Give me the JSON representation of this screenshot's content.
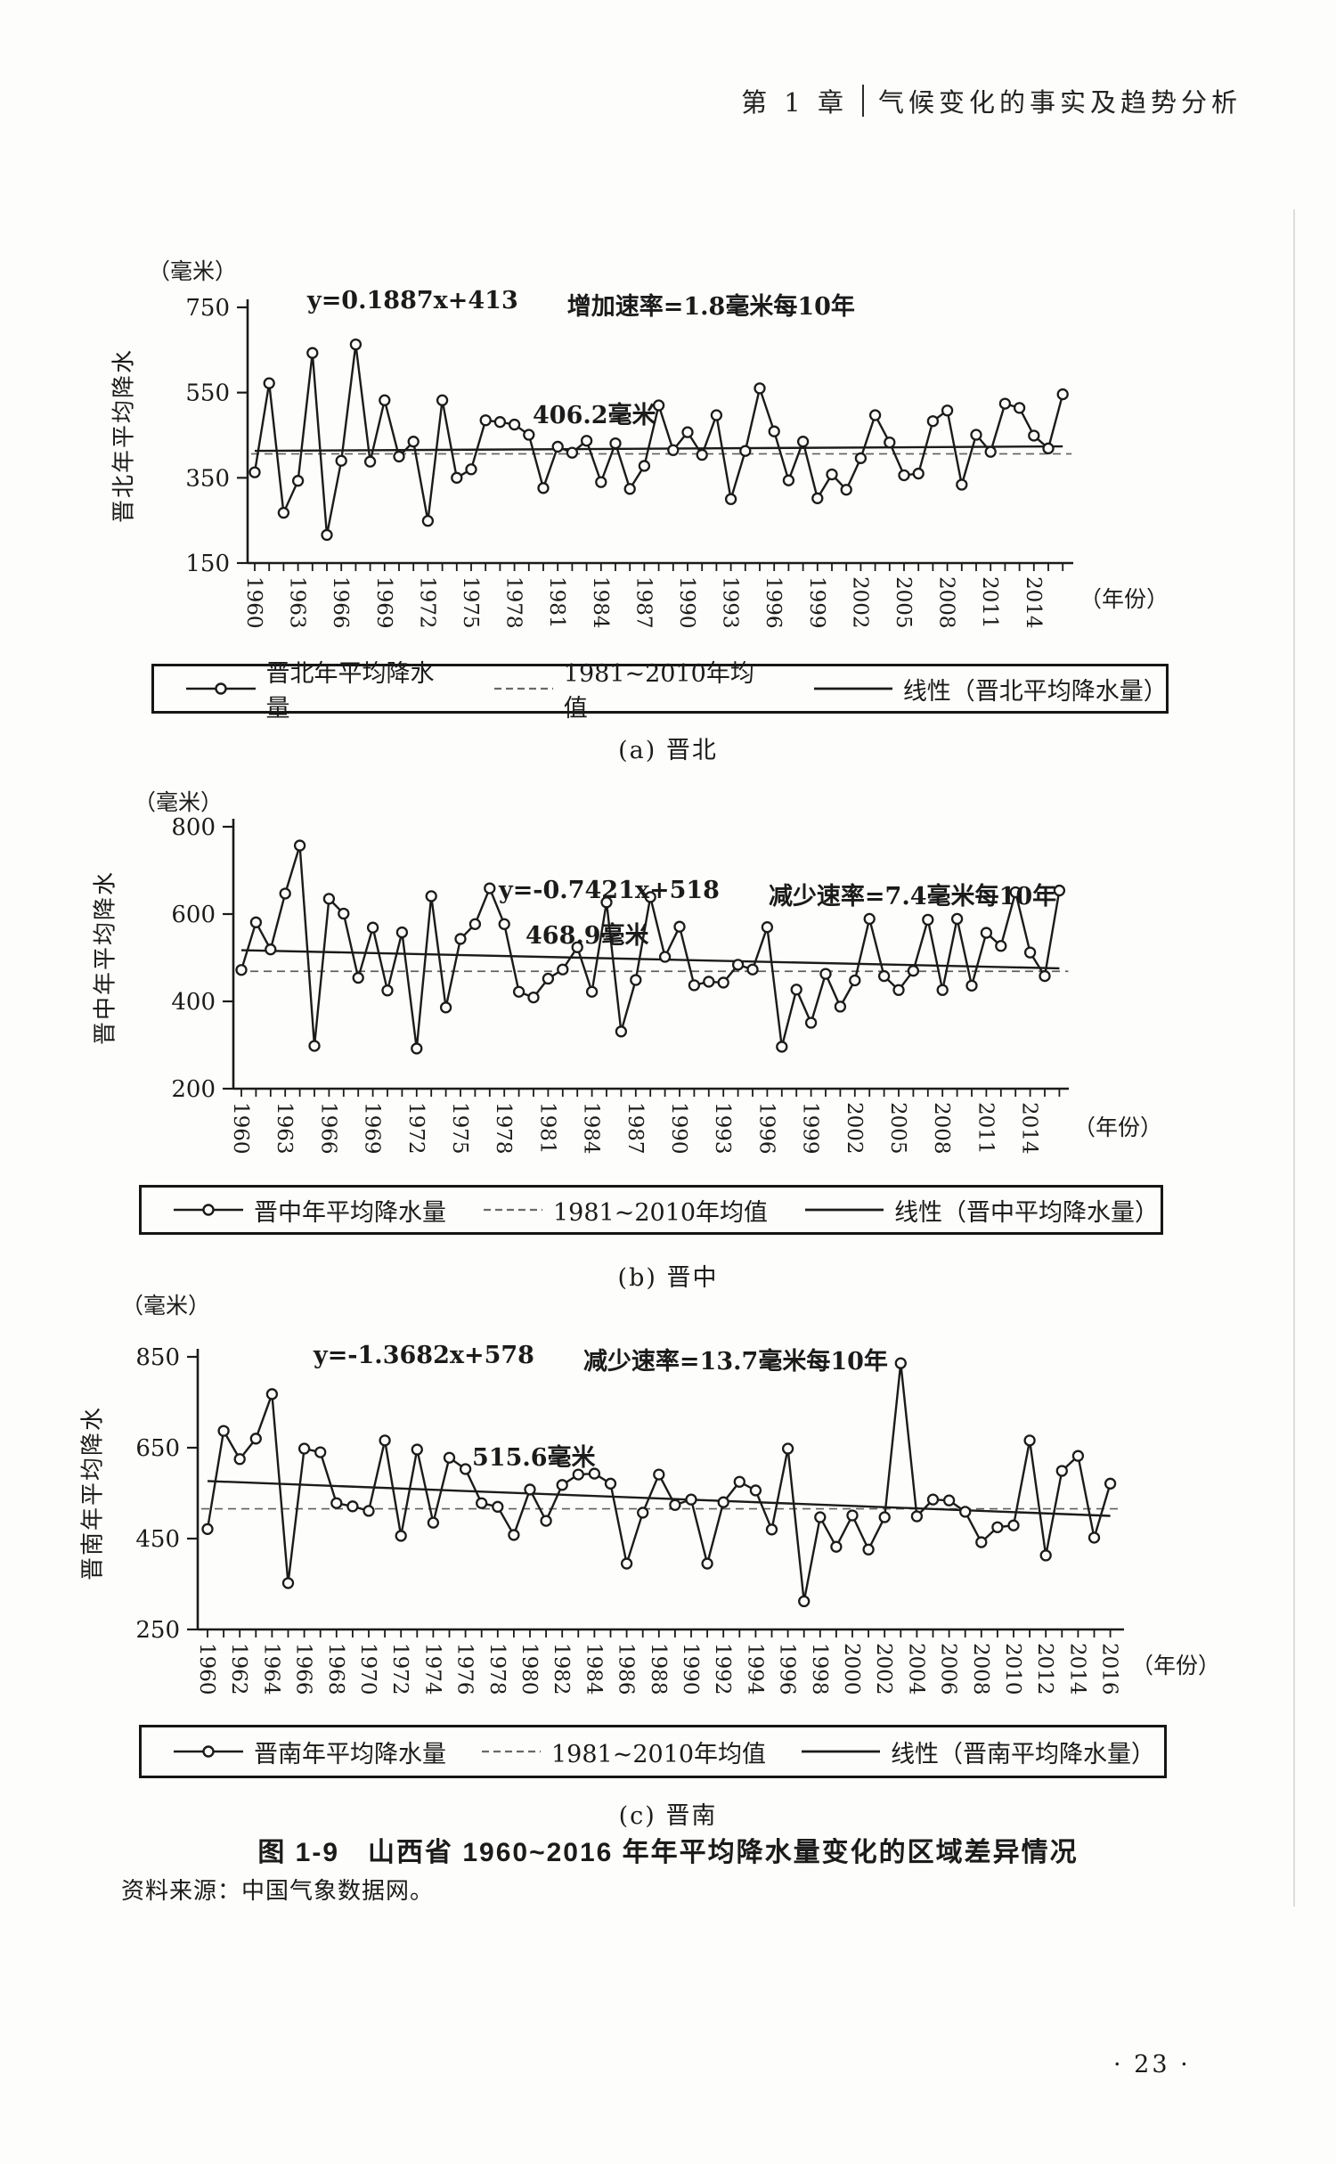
{
  "header": {
    "chapter": "第 1 章",
    "title": "气候变化的事实及趋势分析"
  },
  "charts": [
    {
      "id": "a",
      "unit_label": "（毫米）",
      "y_axis_title": "晋北年平均降水",
      "equation": "y=0.1887x+413",
      "rate_label": "增加速率=1.8毫米每10年",
      "mean_label": "406.2毫米",
      "x_axis_suffix": "（年份）",
      "caption": "(a) 晋北",
      "legend": {
        "series": "晋北年平均降水量",
        "mean": "1981~2010年均值",
        "linear": "线性（晋北平均降水量）"
      },
      "chart_data": {
        "type": "line",
        "x_start": 1960,
        "x_end": 2016,
        "xtick_label_step": 3,
        "ylim": [
          150,
          750
        ],
        "yticks": [
          750,
          550,
          350,
          150
        ],
        "mean_value": 406.2,
        "trend": {
          "slope": 0.1887,
          "intercept": 413
        },
        "values": [
          363,
          572,
          268,
          343,
          643,
          216,
          390,
          663,
          388,
          532,
          400,
          435,
          249,
          532,
          350,
          370,
          485,
          481,
          475,
          451,
          326,
          423,
          409,
          437,
          340,
          431,
          324,
          378,
          520,
          415,
          457,
          404,
          497,
          300,
          413,
          560,
          459,
          344,
          435,
          302,
          358,
          322,
          396,
          497,
          433,
          356,
          360,
          483,
          508,
          334,
          451,
          411,
          524,
          514,
          449,
          419,
          546
        ]
      }
    },
    {
      "id": "b",
      "unit_label": "（毫米）",
      "y_axis_title": "晋中年平均降水",
      "equation": "y=-0.7421x+518",
      "rate_label": "减少速率=7.4毫米每10年",
      "mean_label": "468.9毫米",
      "x_axis_suffix": "（年份）",
      "caption": "(b) 晋中",
      "legend": {
        "series": "晋中年平均降水量",
        "mean": "1981~2010年均值",
        "linear": "线性（晋中平均降水量）"
      },
      "chart_data": {
        "type": "line",
        "x_start": 1960,
        "x_end": 2016,
        "xtick_label_step": 3,
        "ylim": [
          200,
          800
        ],
        "yticks": [
          800,
          600,
          400,
          200
        ],
        "mean_value": 468.9,
        "trend": {
          "slope": -0.7421,
          "intercept": 518
        },
        "values": [
          472,
          581,
          519,
          647,
          757,
          298,
          635,
          601,
          454,
          569,
          425,
          558,
          292,
          641,
          386,
          543,
          577,
          659,
          577,
          422,
          409,
          452,
          473,
          524,
          422,
          627,
          331,
          449,
          639,
          502,
          571,
          437,
          445,
          443,
          484,
          473,
          570,
          296,
          427,
          351,
          463,
          388,
          448,
          589,
          458,
          426,
          470,
          587,
          426,
          589,
          436,
          557,
          527,
          650,
          512,
          458,
          654
        ]
      }
    },
    {
      "id": "c",
      "unit_label": "（毫米）",
      "y_axis_title": "晋南年平均降水",
      "equation": "y=-1.3682x+578",
      "rate_label": "减少速率=13.7毫米每10年",
      "mean_label": "515.6毫米",
      "x_axis_suffix": "（年份）",
      "caption": "(c) 晋南",
      "legend": {
        "series": "晋南年平均降水量",
        "mean": "1981~2010年均值",
        "linear": "线性（晋南平均降水量）"
      },
      "chart_data": {
        "type": "line",
        "x_start": 1960,
        "x_end": 2016,
        "xtick_label_step": 2,
        "ylim": [
          250,
          850
        ],
        "yticks": [
          850,
          650,
          450,
          250
        ],
        "mean_value": 515.6,
        "trend": {
          "slope": -1.3682,
          "intercept": 578
        },
        "values": [
          471,
          687,
          625,
          670,
          768,
          352,
          648,
          640,
          528,
          521,
          511,
          666,
          456,
          646,
          485,
          628,
          603,
          528,
          520,
          458,
          558,
          489,
          568,
          591,
          593,
          571,
          395,
          507,
          591,
          524,
          536,
          395,
          530,
          575,
          556,
          470,
          648,
          312,
          497,
          432,
          501,
          426,
          497,
          836,
          499,
          536,
          534,
          509,
          442,
          475,
          479,
          666,
          413,
          599,
          632,
          452,
          571
        ]
      }
    }
  ],
  "figure_caption": "图 1-9　山西省 1960~2016 年年平均降水量变化的区域差异情况",
  "source": "资料来源：中国气象数据网。",
  "page_number": "· 23 ·"
}
